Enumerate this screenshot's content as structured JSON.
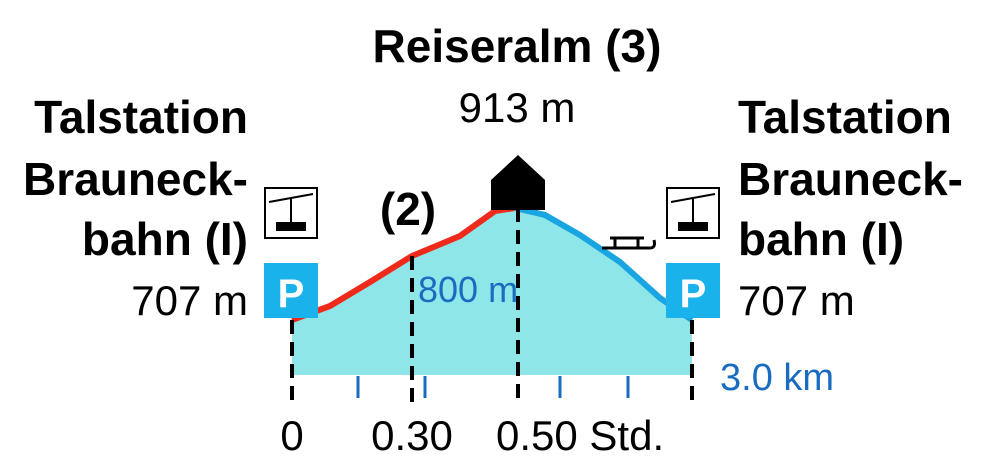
{
  "summit": {
    "name": "Reiseralm (3)",
    "elevation": "913 m"
  },
  "left": {
    "name_lines": [
      "Talstation",
      "Brauneck-",
      "bahn (I)"
    ],
    "elevation": "707 m",
    "parking": "P"
  },
  "right": {
    "name_lines": [
      "Talstation",
      "Brauneck-",
      "bahn (I)"
    ],
    "elevation": "707 m",
    "parking": "P"
  },
  "waypoint": {
    "label": "(2)",
    "elevation": "800 m"
  },
  "distance": "3.0 km",
  "time_ticks": [
    "0",
    "0.30",
    "0.50 Std."
  ]
}
